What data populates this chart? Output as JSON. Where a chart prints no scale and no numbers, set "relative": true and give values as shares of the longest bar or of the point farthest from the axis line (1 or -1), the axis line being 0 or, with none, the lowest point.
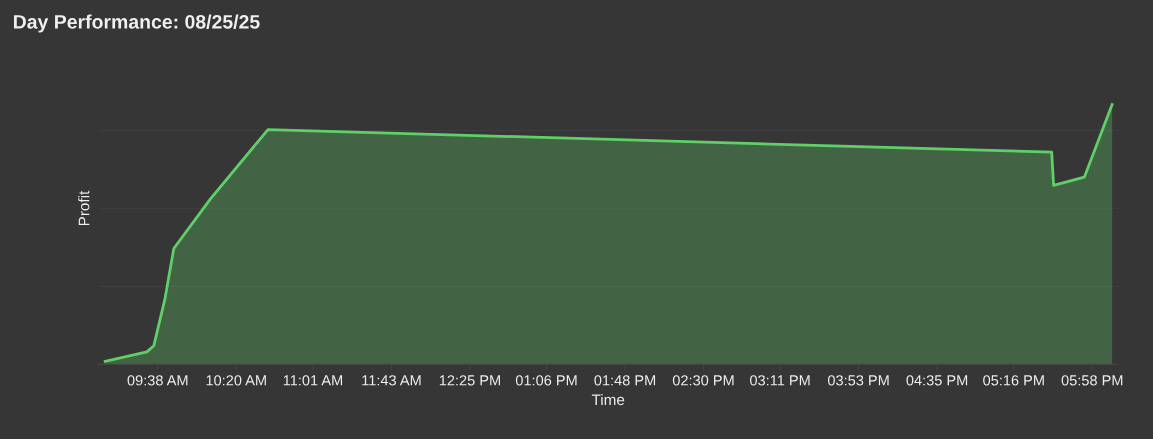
{
  "chart_data": {
    "type": "area",
    "title": "Day Performance: 08/25/25",
    "xlabel": "Time",
    "ylabel": "Profit",
    "relative": true,
    "grid": "y",
    "legend": false,
    "marker": "none",
    "line_style": "solid",
    "x": [
      9.164,
      9.536,
      9.598,
      9.696,
      9.776,
      10.103,
      10.616,
      17.605,
      17.622,
      17.897,
      18.144
    ],
    "series": [
      {
        "color": "#5fd068",
        "values": [
          0.012,
          0.048,
          0.072,
          0.25,
          0.446,
          0.637,
          0.904,
          0.817,
          0.689,
          0.721,
          1
        ]
      }
    ],
    "xlim": [
      9.1,
      18.2
    ],
    "xticks": [
      {
        "value": 9.633,
        "label": "09:38 AM"
      },
      {
        "value": 10.333,
        "label": "10:20 AM"
      },
      {
        "value": 11.017,
        "label": "11:01 AM"
      },
      {
        "value": 11.717,
        "label": "11:43 AM"
      },
      {
        "value": 12.417,
        "label": "12:25 PM"
      },
      {
        "value": 13.1,
        "label": "01:06 PM"
      },
      {
        "value": 13.8,
        "label": "01:48 PM"
      },
      {
        "value": 14.5,
        "label": "02:30 PM"
      },
      {
        "value": 15.183,
        "label": "03:11 PM"
      },
      {
        "value": 15.883,
        "label": "03:53 PM"
      },
      {
        "value": 16.583,
        "label": "04:35 PM"
      },
      {
        "value": 17.267,
        "label": "05:16 PM"
      },
      {
        "value": 17.967,
        "label": "05:58 PM"
      }
    ]
  }
}
